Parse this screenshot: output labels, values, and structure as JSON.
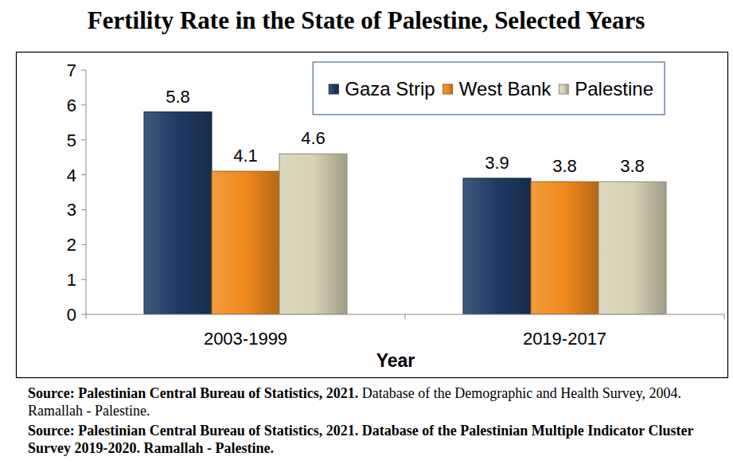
{
  "chart_data": {
    "type": "bar",
    "title": "Fertility Rate in the State of Palestine, Selected Years",
    "x_label": "Year",
    "categories": [
      "2003-1999",
      "2019-2017"
    ],
    "series": [
      {
        "name": "Gaza Strip",
        "color": "#1f3a63",
        "values": [
          5.8,
          3.9
        ]
      },
      {
        "name": "West Bank",
        "color": "#f08a1c",
        "values": [
          4.1,
          3.8
        ]
      },
      {
        "name": "Palestine",
        "color": "#d6d2b4",
        "values": [
          4.6,
          3.8
        ]
      }
    ],
    "ylim": [
      0,
      7
    ],
    "yticks": [
      0,
      1,
      2,
      3,
      4,
      5,
      6,
      7
    ],
    "grid": false,
    "legend": "top-right",
    "data_labels": true
  },
  "sources": [
    {
      "bold": "Source: Palestinian Central Bureau of Statistics, 2021.",
      "normal": "Database of the Demographic and Health Survey, 2004. Ramallah - Palestine."
    },
    {
      "bold": "Source: Palestinian Central Bureau of Statistics, 2021. Database of the Palestinian Multiple Indicator Cluster Survey 2019-2020. Ramallah - Palestine."
    }
  ]
}
